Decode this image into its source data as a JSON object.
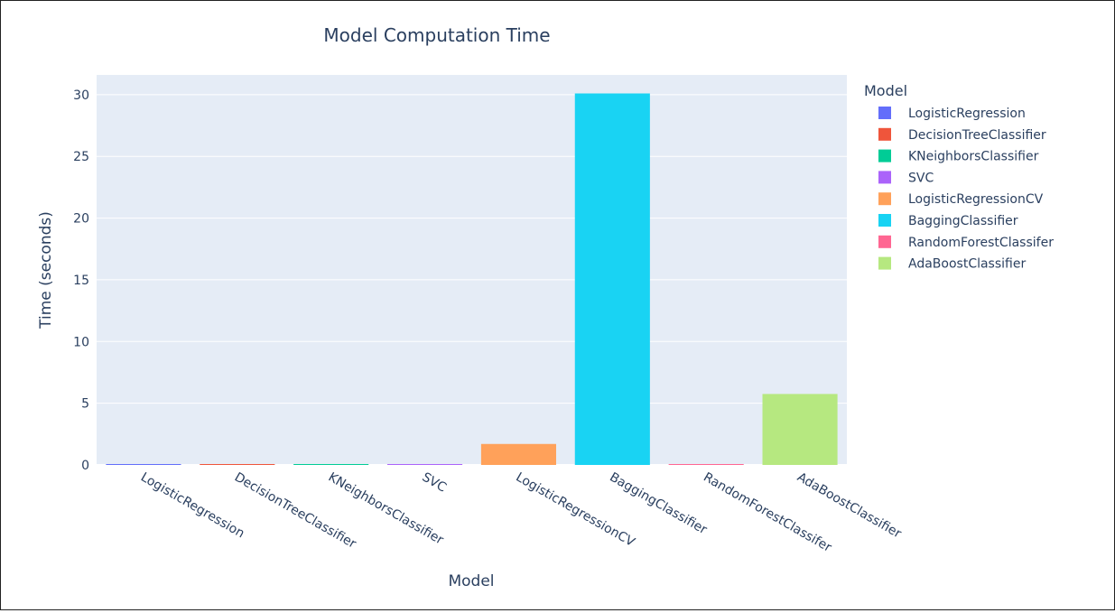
{
  "chart_data": {
    "type": "bar",
    "title": "Model Computation Time",
    "xlabel": "Model",
    "ylabel": "Time (seconds)",
    "ylim": [
      0,
      31.6
    ],
    "yticks": [
      0,
      5,
      10,
      15,
      20,
      25,
      30
    ],
    "categories": [
      "LogisticRegression",
      "DecisionTreeClassifier",
      "KNeighborsClassifier",
      "SVC",
      "LogisticRegressionCV",
      "BaggingClassifier",
      "RandomForestClassifer",
      "AdaBoostClassifier"
    ],
    "values": [
      0.05,
      0.03,
      0.02,
      0.02,
      1.7,
      30.1,
      0.05,
      5.75
    ],
    "colors": [
      "#636efa",
      "#EF553B",
      "#00cc96",
      "#ab63fa",
      "#FFA15A",
      "#19d3f3",
      "#FF6692",
      "#B6E880"
    ],
    "grid": true,
    "legend": {
      "title": "Model",
      "placement": "right",
      "items": [
        "LogisticRegression",
        "DecisionTreeClassifier",
        "KNeighborsClassifier",
        "SVC",
        "LogisticRegressionCV",
        "BaggingClassifier",
        "RandomForestClassifer",
        "AdaBoostClassifier"
      ]
    }
  },
  "style": {
    "plot_bg": "#e5ecf6",
    "grid_color": "#ffffff",
    "text_color": "#2a3f5f"
  }
}
